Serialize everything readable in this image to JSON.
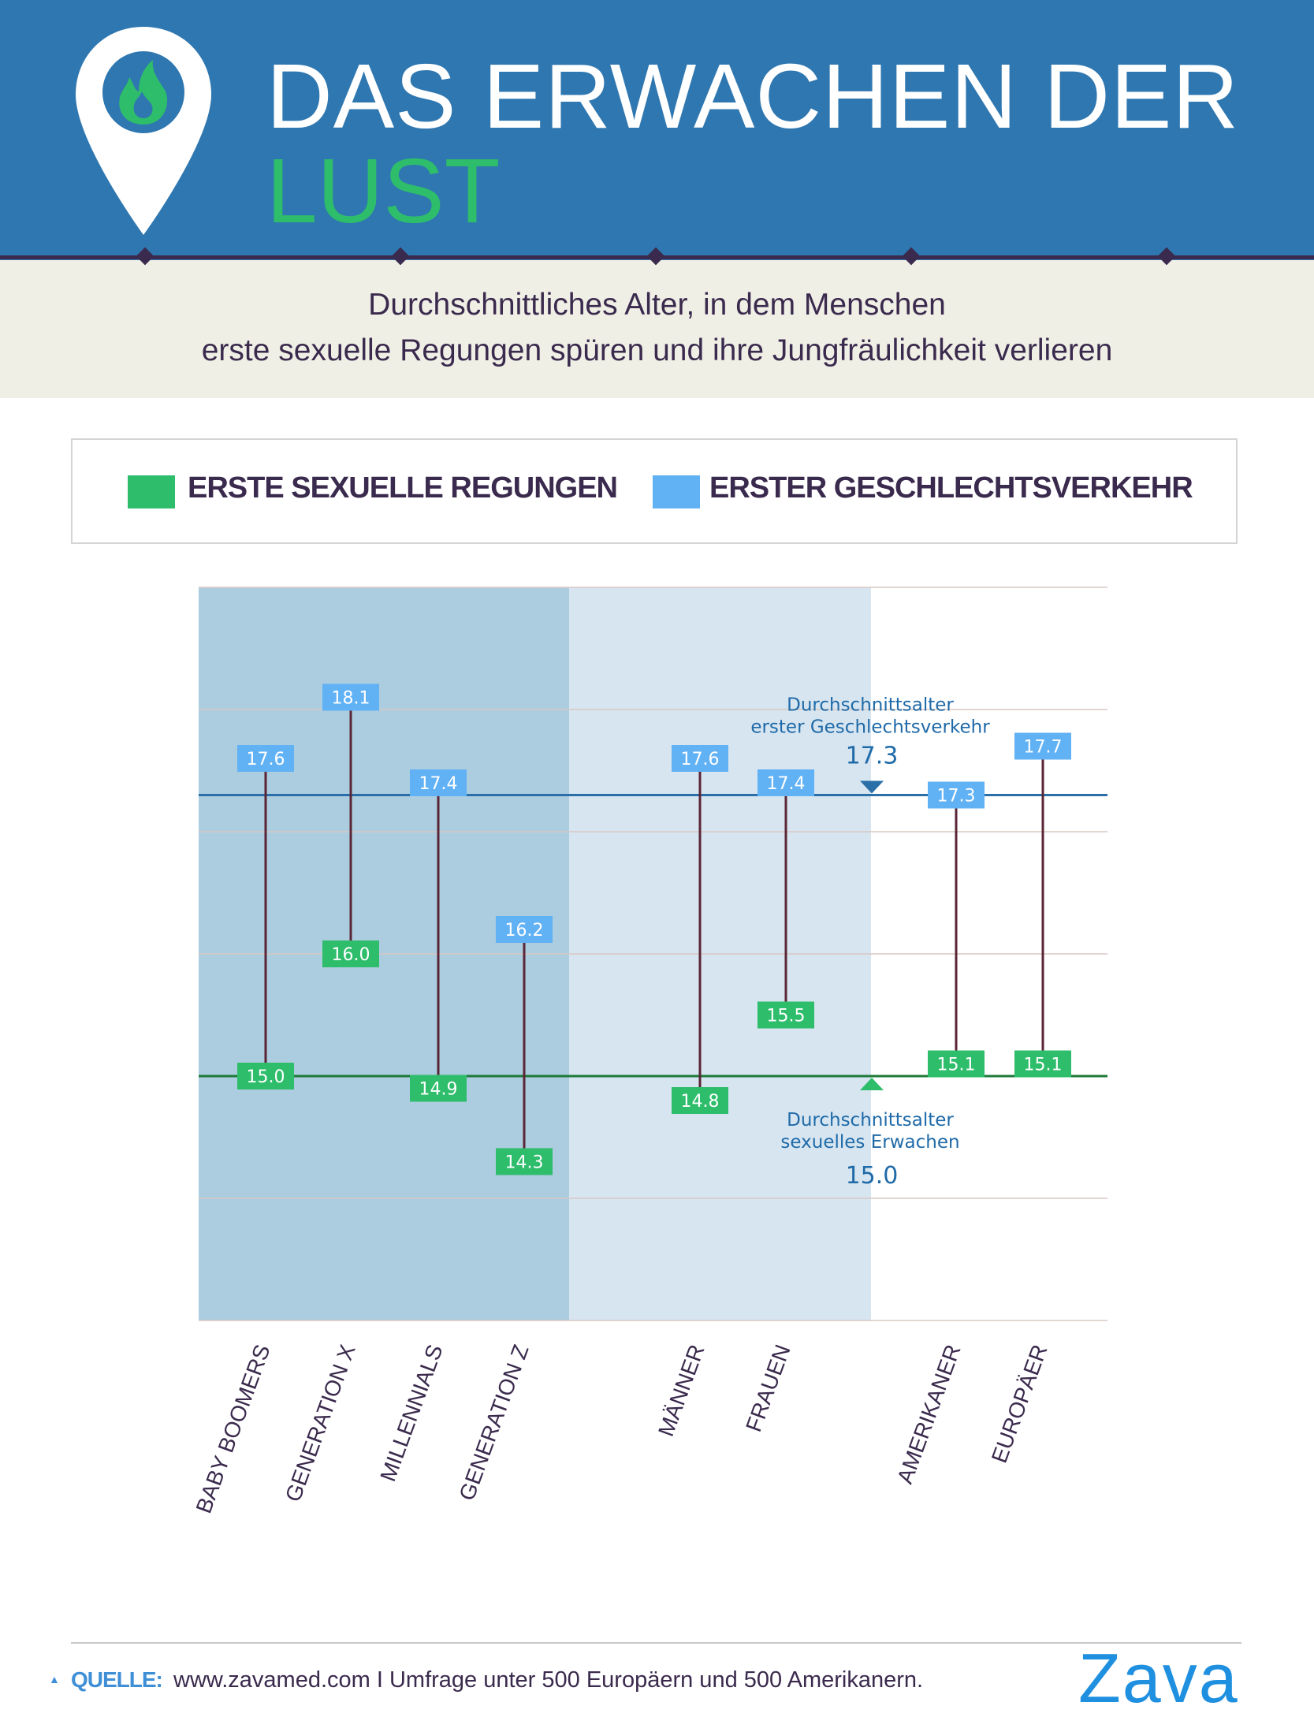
{
  "header": {
    "title_line1": "DAS ERWACHEN DER",
    "title_line2": "LUST",
    "subtitle_line1": "Durchschnittliches Alter, in dem Menschen",
    "subtitle_line2": "erste sexuelle Regungen spüren und ihre Jungfräulichkeit verlieren",
    "icon": "flame-location-pin-icon"
  },
  "legend": {
    "green_label": "ERSTE SEXUELLE REGUNGEN",
    "blue_label": "ERSTER GESCHLECHTSVERKEHR"
  },
  "colors": {
    "header_bg": "#2f77b0",
    "accent_green": "#2ebd6b",
    "accent_blue": "#61b1f5",
    "stem": "#5a2535",
    "band_dark": "#acccdf",
    "band_light": "#d6e5f0",
    "avg_line_blue": "#2a6fa8",
    "avg_line_green": "#1e7a3a",
    "dark_text": "#3a2a4d"
  },
  "chart_data": {
    "type": "range",
    "categories": [
      "BABY BOOMERS",
      "GENERATION X",
      "MILLENNIALS",
      "GENERATION Z",
      "MÄNNER",
      "FRAUEN",
      "AMERIKANER",
      "EUROPÄER"
    ],
    "series": [
      {
        "name": "ERSTE SEXUELLE REGUNGEN",
        "values": [
          15.0,
          16.0,
          14.9,
          14.3,
          14.8,
          15.5,
          15.1,
          15.1
        ]
      },
      {
        "name": "ERSTER GESCHLECHTSVERKEHR",
        "values": [
          17.6,
          18.1,
          17.4,
          16.2,
          17.6,
          17.4,
          17.3,
          17.7
        ]
      }
    ],
    "labels_first": [
      "15.0",
      "16.0",
      "14.9",
      "14.3",
      "14.8",
      "15.5",
      "15.1",
      "15.1"
    ],
    "labels_second": [
      "17.6",
      "18.1",
      "17.4",
      "16.2",
      "17.6",
      "17.4",
      "17.3",
      "17.7"
    ],
    "groups": [
      {
        "categories": [
          "BABY BOOMERS",
          "GENERATION X",
          "MILLENNIALS",
          "GENERATION Z"
        ]
      },
      {
        "categories": [
          "MÄNNER",
          "FRAUEN"
        ]
      },
      {
        "categories": [
          "AMERIKANER",
          "EUROPÄER"
        ]
      }
    ],
    "reference_lines": [
      {
        "label_line1": "Durchschnittsalter",
        "label_line2": "erster Geschlechtsverkehr",
        "value": 17.3,
        "value_label": "17.3"
      },
      {
        "label_line1": "Durchschnittsalter",
        "label_line2": "sexuelles Erwachen",
        "value": 15.0,
        "value_label": "15.0"
      }
    ],
    "ylim": [
      13,
      19
    ],
    "grid": true,
    "legend_position": "top"
  },
  "footer": {
    "source_label": "QUELLE:",
    "source_text": "www.zavamed.com I Umfrage unter 500 Europäern und 500 Amerikanern.",
    "logo_text": "Zava"
  }
}
